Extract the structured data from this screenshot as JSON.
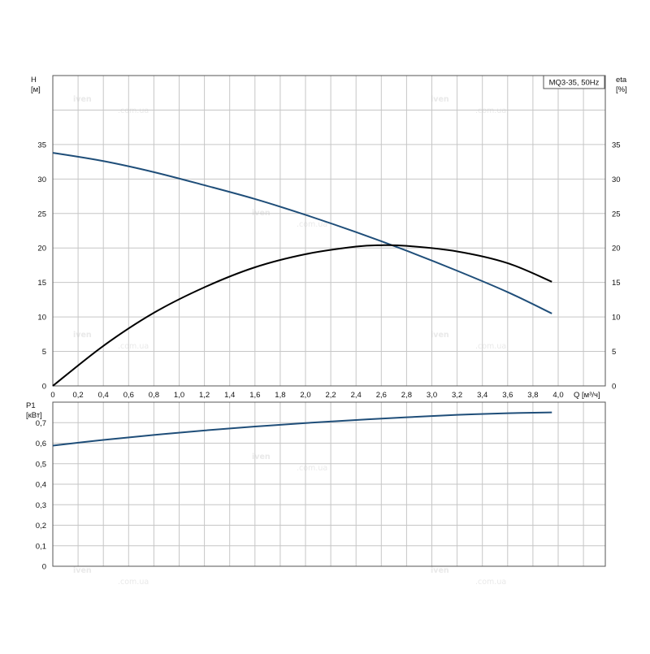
{
  "legend_box": "MQ3-35, 50Hz",
  "chart_data": [
    {
      "type": "line",
      "xlabel": "Q [м³/ч]",
      "ylabel": "H\n[м]",
      "y2label": "eta\n[%]",
      "xlim": [
        0,
        4.4
      ],
      "ylim": [
        0,
        45
      ],
      "y2lim": [
        0,
        45
      ],
      "xticks": [
        "0",
        "0,2",
        "0,4",
        "0,6",
        "0,8",
        "1,0",
        "1,2",
        "1,4",
        "1,6",
        "1,8",
        "2,0",
        "2,2",
        "2,4",
        "2,6",
        "2,8",
        "3,0",
        "3,2",
        "3,4",
        "3,6",
        "3,8",
        "4,0"
      ],
      "yticks": [
        "0",
        "5",
        "10",
        "15",
        "20",
        "25",
        "30",
        "35"
      ],
      "y2ticks": [
        "0",
        "5",
        "10",
        "15",
        "20",
        "25",
        "30",
        "35"
      ],
      "grid": true,
      "series": [
        {
          "axis": "left",
          "color": "#1f4e79",
          "x": [
            0,
            0.4,
            0.8,
            1.2,
            1.6,
            2.0,
            2.4,
            2.8,
            3.2,
            3.6,
            3.95
          ],
          "y": [
            33.8,
            32.6,
            31.0,
            29.1,
            27.1,
            24.8,
            22.3,
            19.6,
            16.7,
            13.6,
            10.5
          ]
        },
        {
          "axis": "right",
          "color": "#000000",
          "x": [
            0,
            0.4,
            0.8,
            1.2,
            1.6,
            2.0,
            2.4,
            2.6,
            2.8,
            3.2,
            3.6,
            3.95
          ],
          "y": [
            0,
            5.8,
            10.6,
            14.3,
            17.2,
            19.1,
            20.2,
            20.4,
            20.3,
            19.5,
            17.8,
            15.1
          ]
        }
      ]
    },
    {
      "type": "line",
      "xlabel": "",
      "ylabel": "P1\n[кВт]",
      "xlim": [
        0,
        4.4
      ],
      "ylim": [
        0,
        0.8
      ],
      "yticks": [
        "0",
        "0,1",
        "0,2",
        "0,3",
        "0,4",
        "0,5",
        "0,6",
        "0,7"
      ],
      "grid": true,
      "series": [
        {
          "axis": "left",
          "color": "#1f4e79",
          "x": [
            0,
            0.4,
            0.8,
            1.2,
            1.6,
            2.0,
            2.4,
            2.8,
            3.2,
            3.6,
            3.95
          ],
          "y": [
            0.588,
            0.616,
            0.64,
            0.662,
            0.681,
            0.698,
            0.713,
            0.726,
            0.738,
            0.746,
            0.75
          ]
        }
      ]
    }
  ]
}
